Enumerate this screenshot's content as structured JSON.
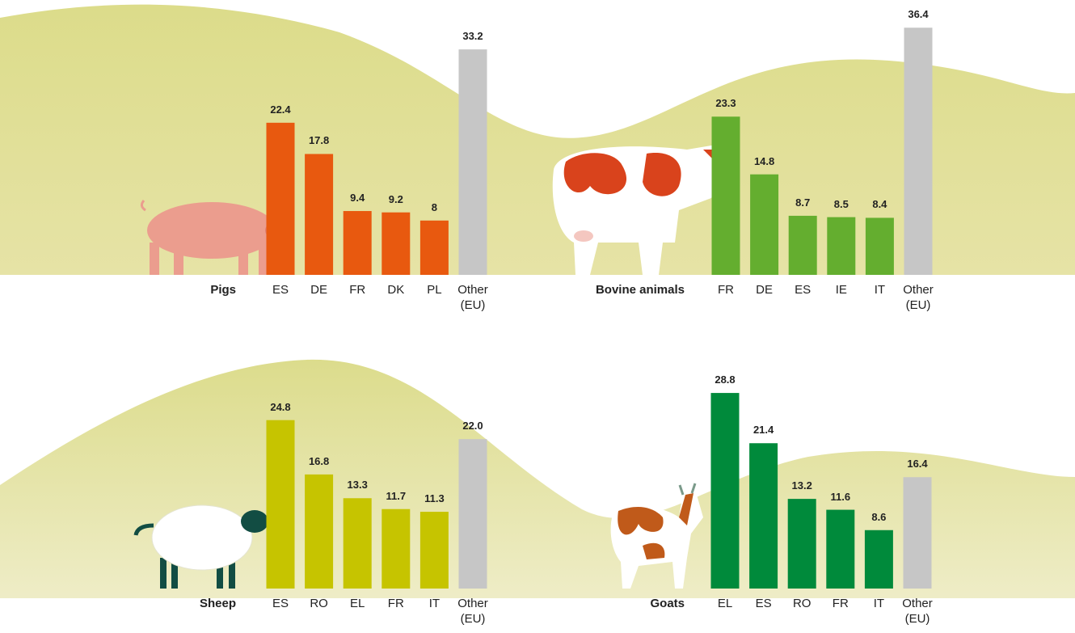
{
  "chart_data": [
    {
      "type": "bar",
      "title": "Pigs",
      "categories": [
        "ES",
        "DE",
        "FR",
        "DK",
        "PL",
        "Other (EU)"
      ],
      "values": [
        22.4,
        17.8,
        9.4,
        9.2,
        8,
        33.2
      ],
      "colors": [
        "#e8590f",
        "#e8590f",
        "#e8590f",
        "#e8590f",
        "#e8590f",
        "#c6c6c6"
      ]
    },
    {
      "type": "bar",
      "title": "Bovine animals",
      "categories": [
        "FR",
        "DE",
        "ES",
        "IE",
        "IT",
        "Other (EU)"
      ],
      "values": [
        23.3,
        14.8,
        8.7,
        8.5,
        8.4,
        36.4
      ],
      "colors": [
        "#64ae2f",
        "#64ae2f",
        "#64ae2f",
        "#64ae2f",
        "#64ae2f",
        "#c6c6c6"
      ]
    },
    {
      "type": "bar",
      "title": "Sheep",
      "categories": [
        "ES",
        "RO",
        "EL",
        "FR",
        "IT",
        "Other (EU)"
      ],
      "values": [
        24.8,
        16.8,
        13.3,
        11.7,
        11.3,
        22
      ],
      "value_labels": [
        "24.8",
        "16.8",
        "13.3",
        "11.7",
        "11.3",
        "22.0"
      ],
      "colors": [
        "#c6c400",
        "#c6c400",
        "#c6c400",
        "#c6c400",
        "#c6c400",
        "#c6c6c6"
      ]
    },
    {
      "type": "bar",
      "title": "Goats",
      "categories": [
        "EL",
        "ES",
        "RO",
        "FR",
        "IT",
        "Other (EU)"
      ],
      "values": [
        28.8,
        21.4,
        13.2,
        11.6,
        8.6,
        16.4
      ],
      "colors": [
        "#008a3b",
        "#008a3b",
        "#008a3b",
        "#008a3b",
        "#008a3b",
        "#c6c6c6"
      ]
    }
  ]
}
